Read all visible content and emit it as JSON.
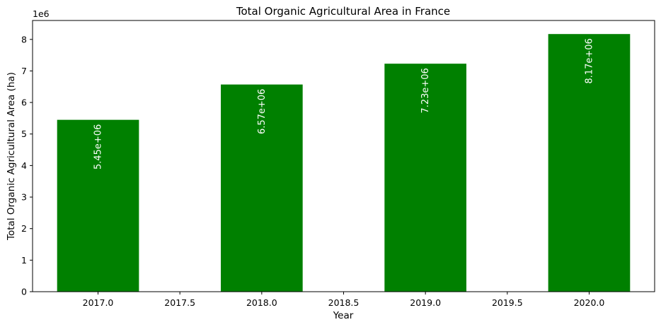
{
  "chart_data": {
    "type": "bar",
    "title": "Total Organic Agricultural Area in France",
    "xlabel": "Year",
    "ylabel": "Total Organic Agricultural Area (ha)",
    "y_scale_label": "1e6",
    "categories": [
      2017,
      2018,
      2019,
      2020
    ],
    "values": [
      5450000,
      6570000,
      7230000,
      8170000
    ],
    "value_labels": [
      "5.45e+06",
      "6.57e+06",
      "7.23e+06",
      "8.17e+06"
    ],
    "xlim": [
      2016.6,
      2020.4
    ],
    "ylim": [
      0,
      8600000
    ],
    "x_ticks": [
      2017.0,
      2017.5,
      2018.0,
      2018.5,
      2019.0,
      2019.5,
      2020.0
    ],
    "x_tick_labels": [
      "2017.0",
      "2017.5",
      "2018.0",
      "2018.5",
      "2019.0",
      "2019.5",
      "2020.0"
    ],
    "y_ticks": [
      0,
      1,
      2,
      3,
      4,
      5,
      6,
      7,
      8
    ],
    "y_tick_labels": [
      "0",
      "1",
      "2",
      "3",
      "4",
      "5",
      "6",
      "7",
      "8"
    ],
    "bar_width": 0.5,
    "bar_color": "#008000",
    "grid": false,
    "legend": false
  }
}
